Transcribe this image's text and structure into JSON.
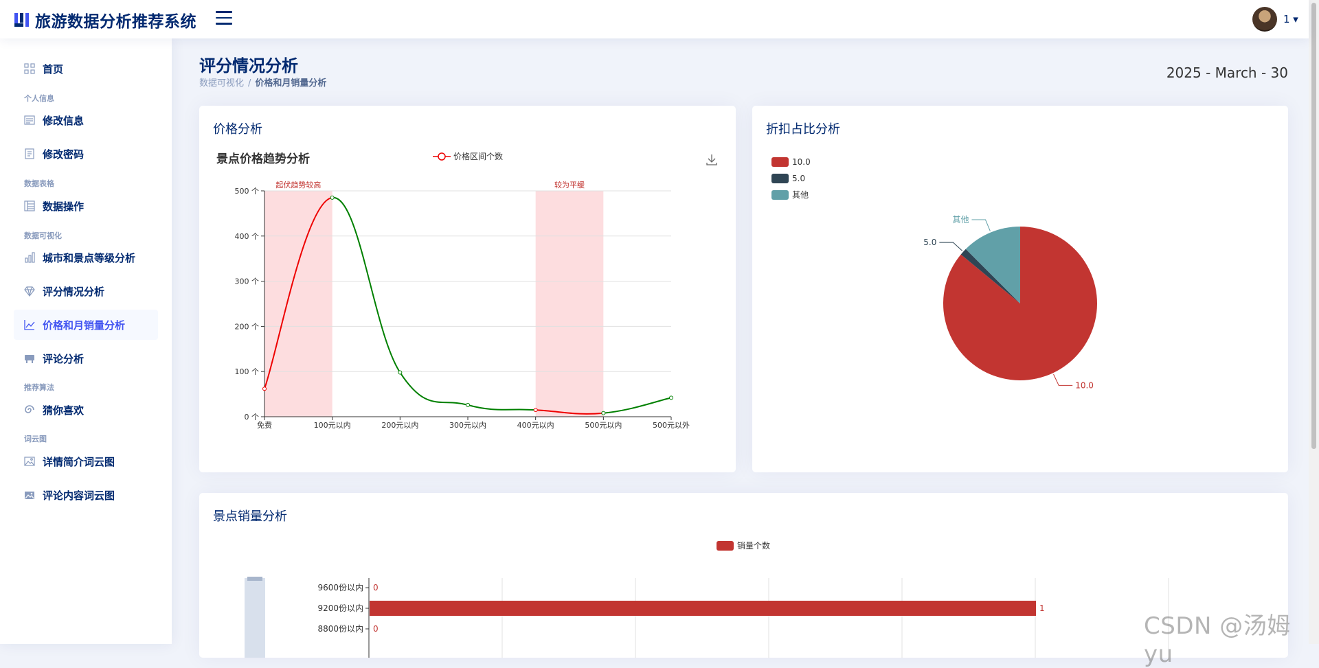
{
  "header": {
    "app_title": "旅游数据分析推荐系统",
    "user_name": "1 ▾"
  },
  "sidebar": {
    "home": "首页",
    "section_personal": "个人信息",
    "edit_info": "修改信息",
    "edit_password": "修改密码",
    "section_tables": "数据表格",
    "data_ops": "数据操作",
    "section_viz": "数据可视化",
    "city_level": "城市和景点等级分析",
    "rating": "评分情况分析",
    "price_sales": "价格和月销量分析",
    "comments": "评论分析",
    "section_algo": "推荐算法",
    "guess": "猜你喜欢",
    "section_wordcloud": "词云图",
    "intro_cloud": "详情简介词云图",
    "comment_cloud": "评论内容词云图"
  },
  "page": {
    "title": "评分情况分析",
    "breadcrumb_parent": "数据可视化",
    "breadcrumb_sep": "/",
    "breadcrumb_current": "价格和月销量分析",
    "date": "2025 - March - 30"
  },
  "cards": {
    "price_title": "价格分析",
    "discount_title": "折扣占比分析",
    "sales_title": "景点销量分析"
  },
  "watermark": "CSDN @汤姆yu",
  "colors": {
    "brand": "#012970",
    "accent": "#4154f1",
    "red": "#c23531",
    "dark": "#2f4554",
    "teal": "#61a0a8",
    "green": "#008000"
  },
  "chart_data": [
    {
      "type": "line",
      "title": "景点价格趋势分析",
      "legend": [
        "价格区间个数"
      ],
      "categories": [
        "免费",
        "100元以内",
        "200元以内",
        "300元以内",
        "400元以内",
        "500元以内",
        "500元以外"
      ],
      "values": [
        62,
        485,
        98,
        26,
        15,
        8,
        42
      ],
      "y_ticks": [
        "0 个",
        "100 个",
        "200 个",
        "300 个",
        "400 个",
        "500 个"
      ],
      "ylim": [
        0,
        500
      ],
      "mark_areas": [
        {
          "label": "起伏趋势较高",
          "from": "免费",
          "to": "100元以内"
        },
        {
          "label": "较为平缓",
          "from": "400元以内",
          "to": "500元以内"
        }
      ]
    },
    {
      "type": "pie",
      "legend": [
        "10.0",
        "5.0",
        "其他"
      ],
      "slices": [
        {
          "name": "10.0",
          "value": 86
        },
        {
          "name": "5.0",
          "value": 1.5
        },
        {
          "name": "其他",
          "value": 12.5
        }
      ]
    },
    {
      "type": "bar",
      "orientation": "horizontal",
      "legend": [
        "销量个数"
      ],
      "categories": [
        "8800份以内",
        "9200份以内",
        "9600份以内"
      ],
      "values": [
        0,
        1,
        0
      ]
    }
  ]
}
